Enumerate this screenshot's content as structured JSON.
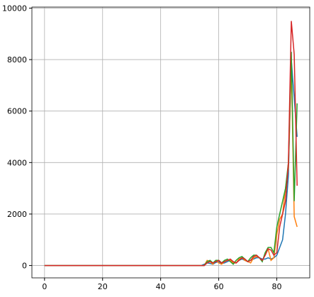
{
  "chart_data": {
    "type": "line",
    "x": [
      0,
      1,
      2,
      3,
      4,
      5,
      6,
      7,
      8,
      9,
      10,
      11,
      12,
      13,
      14,
      15,
      16,
      17,
      18,
      19,
      20,
      21,
      22,
      23,
      24,
      25,
      26,
      27,
      28,
      29,
      30,
      31,
      32,
      33,
      34,
      35,
      36,
      37,
      38,
      39,
      40,
      41,
      42,
      43,
      44,
      45,
      46,
      47,
      48,
      49,
      50,
      51,
      52,
      53,
      54,
      55,
      56,
      57,
      58,
      59,
      60,
      61,
      62,
      63,
      64,
      65,
      66,
      67,
      68,
      69,
      70,
      71,
      72,
      73,
      74,
      75,
      76,
      77,
      78,
      79,
      80,
      81,
      82,
      83,
      84,
      85,
      86,
      87
    ],
    "series": [
      {
        "color": "#1f77b4",
        "values": [
          0,
          0,
          0,
          0,
          0,
          0,
          0,
          0,
          0,
          0,
          0,
          0,
          0,
          0,
          0,
          0,
          0,
          0,
          0,
          0,
          0,
          0,
          0,
          0,
          0,
          0,
          0,
          0,
          0,
          0,
          0,
          0,
          0,
          0,
          0,
          0,
          0,
          0,
          0,
          0,
          0,
          0,
          0,
          0,
          0,
          0,
          0,
          0,
          0,
          0,
          0,
          0,
          0,
          0,
          0,
          50,
          100,
          80,
          50,
          120,
          150,
          80,
          100,
          150,
          200,
          150,
          100,
          200,
          250,
          200,
          150,
          200,
          250,
          300,
          300,
          250,
          250,
          300,
          250,
          300,
          400,
          700,
          1000,
          2000,
          3500,
          8000,
          6500,
          5000
        ]
      },
      {
        "color": "#ff7f0e",
        "values": [
          0,
          0,
          0,
          0,
          0,
          0,
          0,
          0,
          0,
          0,
          0,
          0,
          0,
          0,
          0,
          0,
          0,
          0,
          0,
          0,
          0,
          0,
          0,
          0,
          0,
          0,
          0,
          0,
          0,
          0,
          0,
          0,
          0,
          0,
          0,
          0,
          0,
          0,
          0,
          0,
          0,
          0,
          0,
          0,
          0,
          0,
          0,
          0,
          0,
          0,
          0,
          0,
          0,
          0,
          0,
          0,
          200,
          150,
          50,
          200,
          100,
          50,
          150,
          200,
          200,
          100,
          100,
          250,
          300,
          200,
          150,
          100,
          300,
          350,
          300,
          200,
          400,
          650,
          200,
          300,
          1200,
          1800,
          2000,
          3000,
          3800,
          7800,
          1900,
          1500
        ]
      },
      {
        "color": "#2ca02c",
        "values": [
          0,
          0,
          0,
          0,
          0,
          0,
          0,
          0,
          0,
          0,
          0,
          0,
          0,
          0,
          0,
          0,
          0,
          0,
          0,
          0,
          0,
          0,
          0,
          0,
          0,
          0,
          0,
          0,
          0,
          0,
          0,
          0,
          0,
          0,
          0,
          0,
          0,
          0,
          0,
          0,
          0,
          0,
          0,
          0,
          0,
          0,
          0,
          0,
          0,
          0,
          0,
          0,
          0,
          0,
          0,
          0,
          150,
          200,
          100,
          200,
          200,
          100,
          200,
          250,
          150,
          50,
          200,
          300,
          350,
          250,
          150,
          300,
          400,
          400,
          300,
          150,
          500,
          700,
          700,
          500,
          1500,
          2000,
          2500,
          3000,
          4000,
          8300,
          2500,
          6300
        ]
      },
      {
        "color": "#d62728",
        "values": [
          0,
          0,
          0,
          0,
          0,
          0,
          0,
          0,
          0,
          0,
          0,
          0,
          0,
          0,
          0,
          0,
          0,
          0,
          0,
          0,
          0,
          0,
          0,
          0,
          0,
          0,
          0,
          0,
          0,
          0,
          0,
          0,
          0,
          0,
          0,
          0,
          0,
          0,
          0,
          0,
          0,
          0,
          0,
          0,
          0,
          0,
          0,
          0,
          0,
          0,
          0,
          0,
          0,
          0,
          0,
          0,
          100,
          150,
          100,
          150,
          200,
          100,
          150,
          200,
          250,
          150,
          100,
          200,
          300,
          250,
          150,
          200,
          350,
          400,
          300,
          200,
          400,
          650,
          600,
          400,
          500,
          1500,
          2000,
          2500,
          4000,
          9500,
          8200,
          3100
        ]
      }
    ],
    "xlim": [
      -4.35,
      91.35
    ],
    "ylim": [
      -480,
      10040
    ],
    "xticks": [
      0,
      20,
      40,
      60,
      80
    ],
    "yticks": [
      0,
      2000,
      4000,
      6000,
      8000,
      10000
    ],
    "grid": true
  }
}
